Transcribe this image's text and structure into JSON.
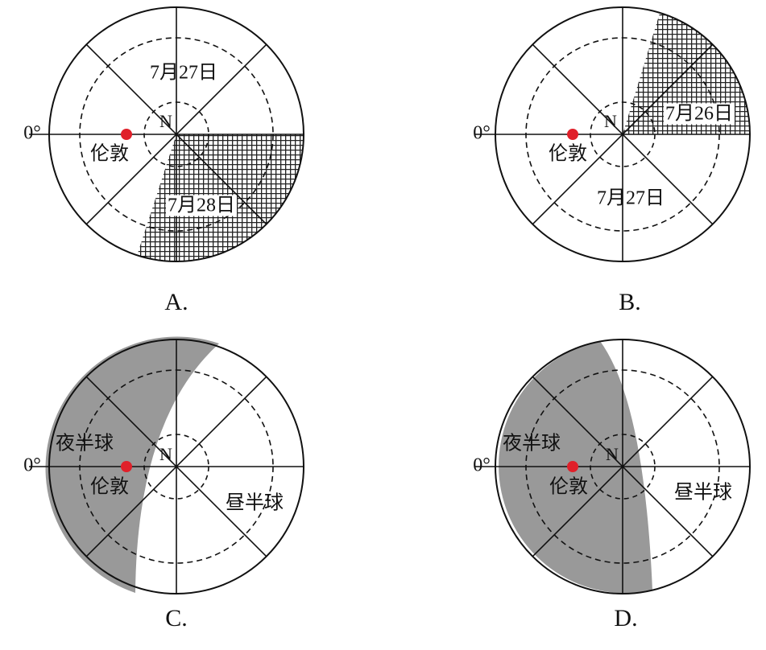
{
  "panels": [
    {
      "letter": "A.",
      "meridian": "0°",
      "pole": "N",
      "city": "伦敦",
      "date_upper": "7月27日",
      "date_lower": "7月28日"
    },
    {
      "letter": "B.",
      "meridian": "0°",
      "pole": "N",
      "city": "伦敦",
      "date_upper": "7月26日",
      "date_lower": "7月27日"
    },
    {
      "letter": "C.",
      "meridian": "0°",
      "pole": "N",
      "city": "伦敦",
      "night": "夜半球",
      "day": "昼半球"
    },
    {
      "letter": "D.",
      "meridian": "0°",
      "pole": "N",
      "city": "伦敦",
      "night": "夜半球",
      "day": "昼半球"
    }
  ]
}
